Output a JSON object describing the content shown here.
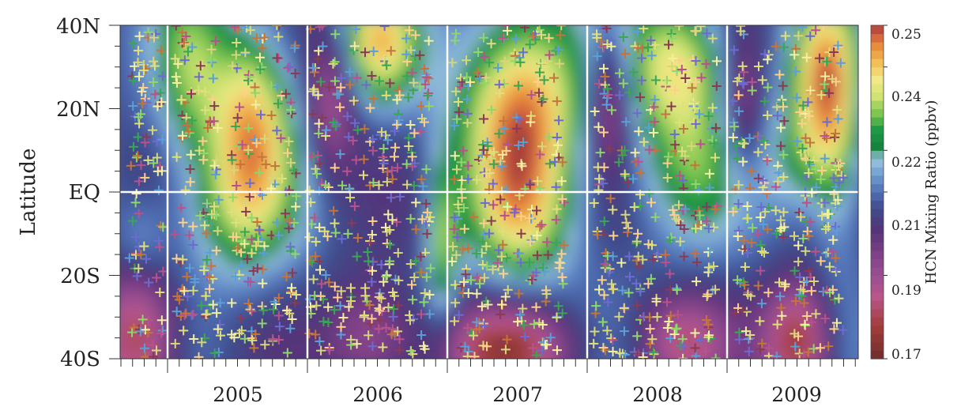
{
  "chart_data": {
    "type": "heatmap",
    "title": "",
    "xlabel": "",
    "ylabel": "Latitude",
    "x_tick_labels": [
      "2005",
      "2006",
      "2007",
      "2008",
      "2009"
    ],
    "y_tick_labels": [
      "40N",
      "20N",
      "EQ",
      "20S",
      "40S"
    ],
    "y_tick_values": [
      40,
      20,
      0,
      -20,
      -40
    ],
    "ylim": [
      -40,
      40
    ],
    "xlim": [
      "2004-03",
      "2009-12"
    ],
    "year_boundaries": [
      "2005-01",
      "2006-01",
      "2007-01",
      "2008-01",
      "2009-01"
    ],
    "colorbar": {
      "label": "HCN Mixing Ratio (ppbv)",
      "tick_labels": [
        "0.25",
        "0.24",
        "0.22",
        "0.21",
        "0.19",
        "0.17"
      ],
      "tick_values": [
        0.25,
        0.24,
        0.22,
        0.21,
        0.19,
        0.17
      ],
      "range": [
        0.17,
        0.25
      ],
      "colors": [
        "#6e2d2d",
        "#a23d3a",
        "#d05a3d",
        "#e88d3c",
        "#f2c156",
        "#f1e987",
        "#d0e372",
        "#7fc650",
        "#1e9a47",
        "#15843d",
        "#9bc6df",
        "#6f9bd0",
        "#4f6fb4",
        "#3f4a8a",
        "#54357a",
        "#7a3e85",
        "#9a4f92",
        "#7a2e4a"
      ]
    },
    "gridlines": {
      "equator": true,
      "year_boundaries": true
    },
    "overlay": "ACE-FTS occultation measurements plotted as colored plus markers"
  }
}
